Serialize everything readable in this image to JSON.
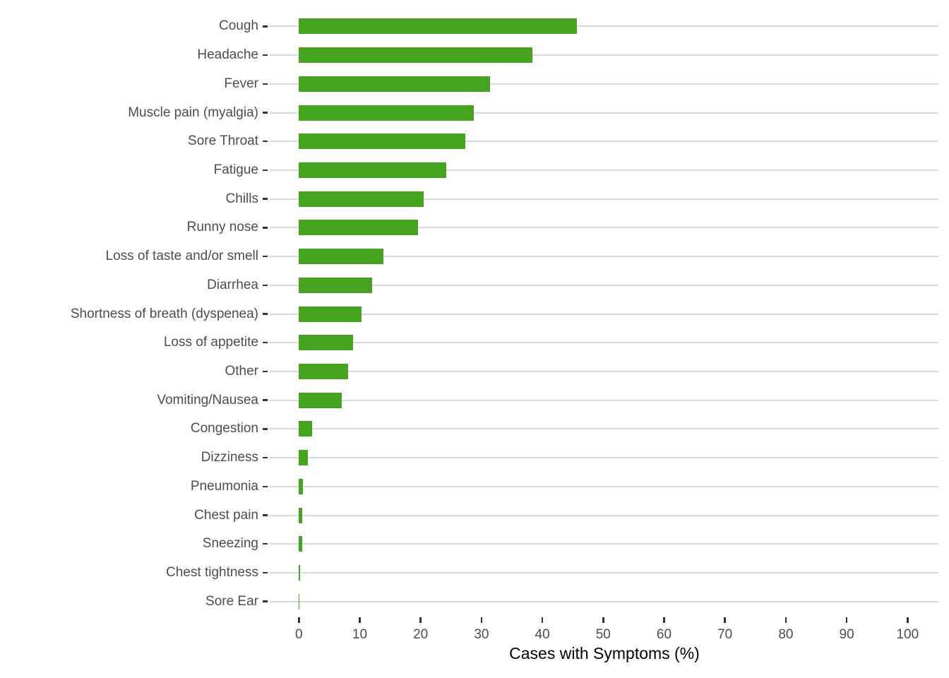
{
  "chart_data": {
    "type": "bar",
    "orientation": "horizontal",
    "title": "",
    "xlabel": "Cases with Symptoms (%)",
    "ylabel": "",
    "categories": [
      "Cough",
      "Headache",
      "Fever",
      "Muscle pain (myalgia)",
      "Sore Throat",
      "Fatigue",
      "Chills",
      "Runny nose",
      "Loss of taste and/or smell",
      "Diarrhea",
      "Shortness of breath (dyspenea)",
      "Loss of appetite",
      "Other",
      "Vomiting/Nausea",
      "Congestion",
      "Dizziness",
      "Pneumonia",
      "Chest pain",
      "Sneezing",
      "Chest tightness",
      "Sore Ear"
    ],
    "values": [
      45.7,
      38.4,
      31.4,
      28.7,
      27.4,
      24.2,
      20.5,
      19.6,
      13.9,
      12.0,
      10.3,
      8.9,
      8.1,
      7.1,
      2.2,
      1.5,
      0.7,
      0.6,
      0.5,
      0.2,
      0.1
    ],
    "x_ticks": [
      0,
      10,
      20,
      30,
      40,
      50,
      60,
      70,
      80,
      90,
      100
    ],
    "xlim": [
      -5,
      105
    ],
    "grid": "horizontal-major-only",
    "legend": "none",
    "colors": {
      "bar": "#45a41e",
      "grid_line": "#d9d9d9",
      "tick_mark": "#333333",
      "tick_label": "#4d4d4d",
      "axis_title": "#000000",
      "background": "#ffffff"
    }
  }
}
